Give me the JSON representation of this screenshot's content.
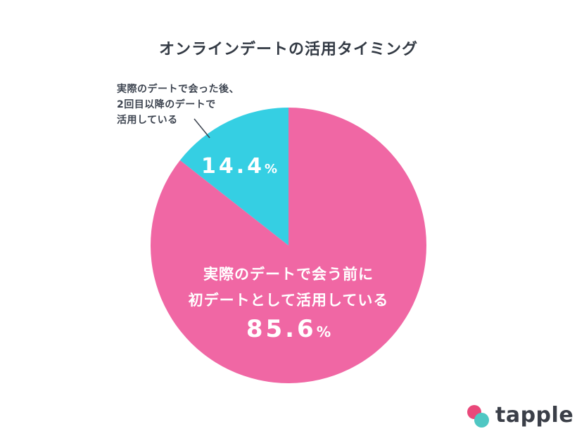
{
  "chart_data": {
    "type": "pie",
    "title": "オンラインデートの活用タイミング",
    "slices": [
      {
        "label_lines": [
          "実際のデートで会う前に",
          "初デートとして活用している"
        ],
        "value": 85.6,
        "value_text": "85.6",
        "color": "#f067a4"
      },
      {
        "label_lines": [
          "実際のデートで会った後、",
          "2回目以降のデートで",
          "活用している"
        ],
        "value": 14.4,
        "value_text": "14.4",
        "color": "#35cfe3"
      }
    ],
    "unit": "%"
  },
  "logo": {
    "text": "tapple"
  },
  "colors": {
    "title": "#333a44",
    "callout_line": "#3d4450",
    "logo_pink": "#e9487a",
    "logo_teal": "#4fc7c3"
  }
}
